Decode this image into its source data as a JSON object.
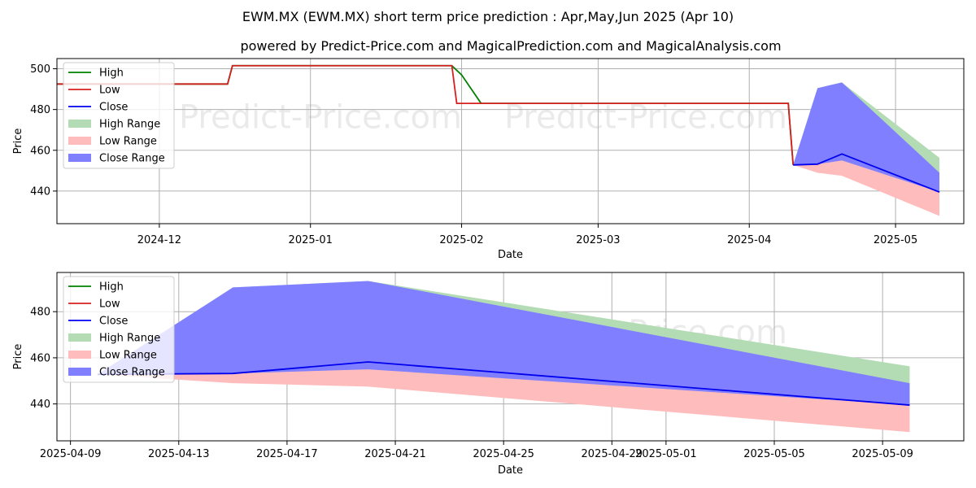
{
  "title_line1": "EWM.MX (EWM.MX) short term price prediction : Apr,May,Jun 2025 (Apr 10)",
  "title_line2": "powered by Predict-Price.com and MagicalPrediction.com and MagicalAnalysis.com",
  "watermark": "Predict-Price.com",
  "colors": {
    "high": "#008000",
    "low": "#d62020",
    "close": "#0000ee",
    "high_range": "#b4dcb4",
    "low_range": "#ffbcbc",
    "close_range": "#7f7fff",
    "grid": "#b0b0b0"
  },
  "legend": {
    "high": "High",
    "low": "Low",
    "close": "Close",
    "high_range": "High Range",
    "low_range": "Low Range",
    "close_range": "Close Range"
  },
  "chart_data": [
    {
      "type": "line",
      "title": "",
      "xlabel": "Date",
      "ylabel": "Price",
      "xlim": [
        "2024-11-10",
        "2025-05-15"
      ],
      "ylim": [
        424,
        505
      ],
      "x_ticks": [
        "2024-12-01",
        "2025-01-01",
        "2025-02-01",
        "2025-03-01",
        "2025-04-01",
        "2025-05-01"
      ],
      "x_tick_labels": [
        "2024-12",
        "2025-01",
        "2025-02",
        "2025-03",
        "2025-04",
        "2025-05"
      ],
      "y_ticks": [
        440,
        460,
        480,
        500
      ],
      "series": [
        {
          "name": "High",
          "points": [
            [
              "2024-11-10",
              492.5
            ],
            [
              "2024-12-15",
              492.5
            ],
            [
              "2024-12-16",
              501.5
            ],
            [
              "2025-01-30",
              501.5
            ],
            [
              "2025-02-01",
              497
            ],
            [
              "2025-02-05",
              483
            ],
            [
              "2025-04-09",
              483
            ],
            [
              "2025-04-10",
              452.8
            ]
          ]
        },
        {
          "name": "Low",
          "points": [
            [
              "2024-11-10",
              492.5
            ],
            [
              "2024-12-15",
              492.5
            ],
            [
              "2024-12-16",
              501.5
            ],
            [
              "2025-01-30",
              501.5
            ],
            [
              "2025-01-31",
              483
            ],
            [
              "2025-04-09",
              483
            ],
            [
              "2025-04-10",
              452.8
            ]
          ]
        },
        {
          "name": "Close",
          "points": [
            [
              "2025-04-10",
              452.8
            ],
            [
              "2025-04-15",
              453.2
            ],
            [
              "2025-04-20",
              458.2
            ],
            [
              "2025-05-10",
              439.5
            ]
          ]
        }
      ],
      "ranges": [
        {
          "name": "High Range",
          "dates": [
            "2025-04-10",
            "2025-04-15",
            "2025-04-20",
            "2025-05-10"
          ],
          "upper": [
            452.8,
            490.5,
            493.3,
            456.3
          ],
          "lower": [
            452.8,
            453.2,
            458.2,
            439.5
          ]
        },
        {
          "name": "Low Range",
          "dates": [
            "2025-04-10",
            "2025-04-15",
            "2025-04-20",
            "2025-05-10"
          ],
          "upper": [
            452.8,
            453.2,
            458.2,
            439.5
          ],
          "lower": [
            452.8,
            449.0,
            447.5,
            427.8
          ]
        },
        {
          "name": "Close Range",
          "dates": [
            "2025-04-10",
            "2025-04-15",
            "2025-04-20",
            "2025-05-10"
          ],
          "upper": [
            452.8,
            490.5,
            493.3,
            449.0
          ],
          "lower": [
            452.8,
            453.2,
            455.0,
            439.5
          ]
        }
      ]
    },
    {
      "type": "line",
      "title": "",
      "xlabel": "Date",
      "ylabel": "Price",
      "xlim": [
        "2025-04-08T12:00",
        "2025-05-12T00:00"
      ],
      "ylim": [
        424,
        497
      ],
      "x_ticks": [
        "2025-04-09",
        "2025-04-13",
        "2025-04-17",
        "2025-04-21",
        "2025-04-25",
        "2025-04-29",
        "2025-05-01",
        "2025-05-05",
        "2025-05-09"
      ],
      "x_tick_labels": [
        "2025-04-09",
        "2025-04-13",
        "2025-04-17",
        "2025-04-21",
        "2025-04-25",
        "2025-04-29",
        "2025-05-01",
        "2025-05-05",
        "2025-05-09"
      ],
      "y_ticks": [
        440,
        460,
        480
      ],
      "series": [
        {
          "name": "Close",
          "points": [
            [
              "2025-04-10",
              452.8
            ],
            [
              "2025-04-15",
              453.2
            ],
            [
              "2025-04-20",
              458.2
            ],
            [
              "2025-05-10",
              439.5
            ]
          ]
        }
      ],
      "ranges": [
        {
          "name": "High Range",
          "dates": [
            "2025-04-10",
            "2025-04-15",
            "2025-04-20",
            "2025-05-10"
          ],
          "upper": [
            452.8,
            490.5,
            493.3,
            456.3
          ],
          "lower": [
            452.8,
            453.2,
            458.2,
            439.5
          ]
        },
        {
          "name": "Low Range",
          "dates": [
            "2025-04-10",
            "2025-04-15",
            "2025-04-20",
            "2025-05-10"
          ],
          "upper": [
            452.8,
            453.2,
            458.2,
            439.5
          ],
          "lower": [
            452.8,
            449.0,
            447.5,
            427.8
          ]
        },
        {
          "name": "Close Range",
          "dates": [
            "2025-04-10",
            "2025-04-15",
            "2025-04-20",
            "2025-05-10"
          ],
          "upper": [
            452.8,
            490.5,
            493.3,
            449.0
          ],
          "lower": [
            452.8,
            453.2,
            455.0,
            439.5
          ]
        }
      ]
    }
  ]
}
